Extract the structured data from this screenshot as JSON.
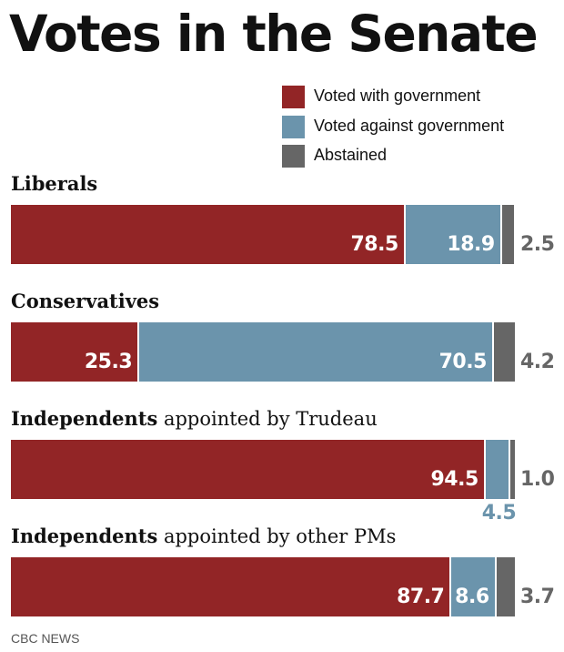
{
  "chart_data": {
    "type": "bar",
    "orientation": "horizontal",
    "stacked": true,
    "title": "Votes in the Senate",
    "source": "CBC NEWS",
    "legend_position": "top-right",
    "series": [
      {
        "name": "Voted with government",
        "color": "#922526"
      },
      {
        "name": "Voted against government",
        "color": "#6b94ac"
      },
      {
        "name": "Abstained",
        "color": "#666666"
      }
    ],
    "groups": [
      {
        "bold": "Liberals",
        "rest": "",
        "values": [
          78.5,
          18.9,
          2.5
        ],
        "labels": [
          "78.5",
          "18.9",
          "2.5"
        ]
      },
      {
        "bold": "Conservatives",
        "rest": "",
        "values": [
          25.3,
          70.5,
          4.2
        ],
        "labels": [
          "25.3",
          "70.5",
          "4.2"
        ]
      },
      {
        "bold": "Independents",
        "rest": " appointed by Trudeau",
        "values": [
          94.5,
          4.5,
          1.0
        ],
        "labels": [
          "94.5",
          "4.5",
          "1.0"
        ]
      },
      {
        "bold": "Independents",
        "rest": " appointed by other PMs",
        "values": [
          87.7,
          8.6,
          3.7
        ],
        "labels": [
          "87.7",
          "8.6",
          "3.7"
        ]
      }
    ],
    "xlim": [
      0,
      100
    ],
    "grid": false
  }
}
